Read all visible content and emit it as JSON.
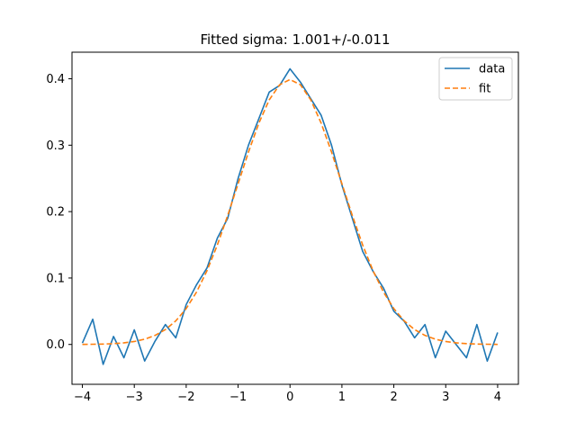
{
  "chart_data": {
    "type": "line",
    "title": "Fitted sigma: 1.001+/-0.011",
    "xlabel": "",
    "ylabel": "",
    "xlim": [
      -4.2,
      4.4
    ],
    "ylim": [
      -0.06,
      0.44
    ],
    "x_ticks": [
      -4,
      -3,
      -2,
      -1,
      0,
      1,
      2,
      3,
      4
    ],
    "x_tick_labels": [
      "−4",
      "−3",
      "−2",
      "−1",
      "0",
      "1",
      "2",
      "3",
      "4"
    ],
    "y_ticks": [
      0.0,
      0.1,
      0.2,
      0.3,
      0.4
    ],
    "y_tick_labels": [
      "0.0",
      "0.1",
      "0.2",
      "0.3",
      "0.4"
    ],
    "grid": false,
    "legend_position": "top-right",
    "x": [
      -4.0,
      -3.8,
      -3.6,
      -3.4,
      -3.2,
      -3.0,
      -2.8,
      -2.6,
      -2.4,
      -2.2,
      -2.0,
      -1.8,
      -1.6,
      -1.4,
      -1.2,
      -1.0,
      -0.8,
      -0.6,
      -0.4,
      -0.2,
      0.0,
      0.2,
      0.4,
      0.6,
      0.8,
      1.0,
      1.2,
      1.4,
      1.6,
      1.8,
      2.0,
      2.2,
      2.4,
      2.6,
      2.8,
      3.0,
      3.2,
      3.4,
      3.6,
      3.8,
      4.0
    ],
    "series": [
      {
        "name": "data",
        "color": "#1f77b4",
        "style": "solid",
        "values": [
          0.002,
          0.038,
          -0.03,
          0.012,
          -0.02,
          0.022,
          -0.025,
          0.005,
          0.03,
          0.01,
          0.06,
          0.09,
          0.115,
          0.16,
          0.19,
          0.25,
          0.3,
          0.34,
          0.38,
          0.39,
          0.415,
          0.395,
          0.37,
          0.345,
          0.3,
          0.24,
          0.19,
          0.14,
          0.11,
          0.085,
          0.05,
          0.035,
          0.01,
          0.03,
          -0.02,
          0.02,
          0.0,
          -0.02,
          0.03,
          -0.025,
          0.018
        ]
      },
      {
        "name": "fit",
        "color": "#ff7f0e",
        "style": "dashed",
        "values": [
          0.0001,
          0.0003,
          0.0006,
          0.0012,
          0.0024,
          0.0044,
          0.0079,
          0.0136,
          0.0224,
          0.0355,
          0.054,
          0.079,
          0.1109,
          0.1497,
          0.1942,
          0.242,
          0.2897,
          0.3332,
          0.3683,
          0.391,
          0.3989,
          0.391,
          0.3683,
          0.3332,
          0.2897,
          0.242,
          0.1942,
          0.1497,
          0.1109,
          0.079,
          0.054,
          0.0355,
          0.0224,
          0.0136,
          0.0079,
          0.0044,
          0.0024,
          0.0012,
          0.0006,
          0.0003,
          0.0001
        ]
      }
    ]
  }
}
